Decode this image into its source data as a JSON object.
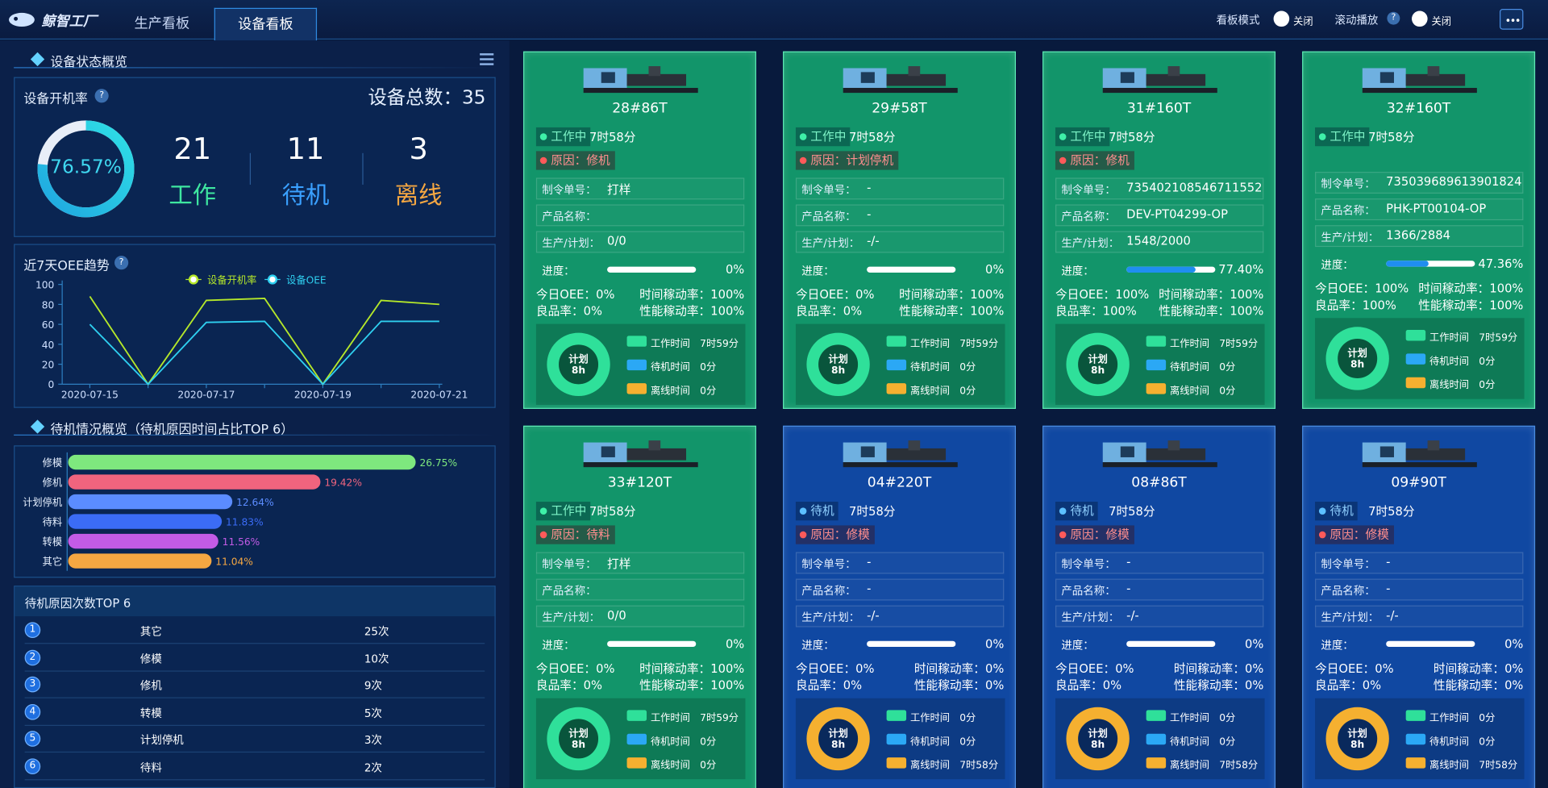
{
  "header": {
    "logo": "鲸智工厂",
    "tabs": [
      "生产看板",
      "设备看板"
    ],
    "active_tab": 1,
    "board_mode": {
      "label": "看板模式",
      "state": "关闭"
    },
    "scroll_play": {
      "label": "滚动播放",
      "state": "关闭"
    },
    "help_icon": "?"
  },
  "status_overview": {
    "title": "设备状态概览",
    "rate_label": "设备开机率",
    "rate": 76.57,
    "rate_text": "76.57%",
    "total": "设备总数：35",
    "counts": [
      {
        "value": 21,
        "label": "工作",
        "color": "#3ee6a0"
      },
      {
        "value": 11,
        "label": "待机",
        "color": "#3aa0ff"
      },
      {
        "value": 3,
        "label": "离线",
        "color": "#f5a742"
      }
    ]
  },
  "oee_trend": {
    "type": "line",
    "title": "近7天OEE趋势",
    "categories": [
      "2020-07-15",
      null,
      "2020-07-17",
      null,
      "2020-07-19",
      null,
      "2020-07-21"
    ],
    "series": [
      {
        "name": "设备开机率",
        "color": "#b5e82a",
        "values": [
          88,
          0,
          84,
          86,
          0,
          84,
          80
        ]
      },
      {
        "name": "设备OEE",
        "color": "#2fd0f0",
        "values": [
          60,
          0,
          62,
          63,
          0,
          63,
          63
        ]
      }
    ],
    "ylim": [
      0,
      100
    ],
    "yticks": [
      0,
      20,
      40,
      60,
      80,
      100
    ]
  },
  "standby_ratio": {
    "type": "bar",
    "title": "待机情况概览（待机原因时间占比TOP 6）",
    "categories": [
      "修模",
      "修机",
      "计划停机",
      "待料",
      "转模",
      "其它"
    ],
    "values": [
      26.75,
      19.42,
      12.64,
      11.83,
      11.56,
      11.04
    ],
    "value_labels": [
      "26.75%",
      "19.42%",
      "12.64%",
      "11.83%",
      "11.56%",
      "11.04%"
    ],
    "colors": [
      "#7ee87e",
      "#f0647e",
      "#5b8cff",
      "#3b6cf6",
      "#c35be6",
      "#f5a742"
    ]
  },
  "standby_count": {
    "title": "待机原因次数TOP 6",
    "rows": [
      {
        "rank": 1,
        "reason": "其它",
        "count": "25次"
      },
      {
        "rank": 2,
        "reason": "修模",
        "count": "10次"
      },
      {
        "rank": 3,
        "reason": "修机",
        "count": "9次"
      },
      {
        "rank": 4,
        "reason": "转模",
        "count": "5次"
      },
      {
        "rank": 5,
        "reason": "计划停机",
        "count": "3次"
      },
      {
        "rank": 6,
        "reason": "待料",
        "count": "2次"
      }
    ]
  },
  "machine_labels": {
    "order": "制令单号：",
    "product": "产品名称：",
    "plan": "生产/计划：",
    "progress": "进度：",
    "plan_center": "计划",
    "plan_hours": "8h",
    "legend": [
      "工作时间",
      "待机时间",
      "离线时间"
    ],
    "legend_colors": [
      "#2fe09a",
      "#2ba8f5",
      "#f5b030"
    ]
  },
  "machines": [
    {
      "name": "28#86T",
      "color": "#12956a",
      "status": "工作中",
      "duration": "7时58分",
      "reason": "原因：修机",
      "order": "打样",
      "product": null,
      "plan": "0/0",
      "progress": 0,
      "progress_label": "0%",
      "stats": [
        "今日OEE：0%",
        "时间稼动率：100%",
        "良品率：0%",
        "性能稼动率：100%"
      ],
      "time": [
        {
          "value": 479,
          "label": "7时59分"
        },
        {
          "value": 0,
          "label": "0分"
        },
        {
          "value": 0,
          "label": "0分"
        }
      ]
    },
    {
      "name": "29#58T",
      "color": "#12956a",
      "status": "工作中",
      "duration": "7时58分",
      "reason": "原因：计划停机",
      "order": "-",
      "product": "-",
      "plan": "-/-",
      "progress": 0,
      "progress_label": "0%",
      "stats": [
        "今日OEE：0%",
        "时间稼动率：100%",
        "良品率：0%",
        "性能稼动率：100%"
      ],
      "time": [
        {
          "value": 479,
          "label": "7时59分"
        },
        {
          "value": 0,
          "label": "0分"
        },
        {
          "value": 0,
          "label": "0分"
        }
      ]
    },
    {
      "name": "31#160T",
      "color": "#12956a",
      "status": "工作中",
      "duration": "7时58分",
      "reason": "原因：修机",
      "order": "735402108546711552",
      "product": "DEV-PT04299-OP",
      "plan": "1548/2000",
      "progress": 77.4,
      "progress_label": "77.40%",
      "stats": [
        "今日OEE：100%",
        "时间稼动率：100%",
        "良品率：100%",
        "性能稼动率：100%"
      ],
      "time": [
        {
          "value": 479,
          "label": "7时59分"
        },
        {
          "value": 0,
          "label": "0分"
        },
        {
          "value": 0,
          "label": "0分"
        }
      ]
    },
    {
      "name": "32#160T",
      "color": "#12956a",
      "status": "工作中",
      "duration": "7时58分",
      "reason": null,
      "order": "735039689613901824",
      "product": "PHK-PT00104-OP",
      "plan": "1366/2884",
      "progress": 47.36,
      "progress_label": "47.36%",
      "stats": [
        "今日OEE：100%",
        "时间稼动率：100%",
        "良品率：100%",
        "性能稼动率：100%"
      ],
      "time": [
        {
          "value": 479,
          "label": "7时59分"
        },
        {
          "value": 0,
          "label": "0分"
        },
        {
          "value": 0,
          "label": "0分"
        }
      ]
    },
    {
      "name": "33#120T",
      "color": "#12956a",
      "status": "工作中",
      "duration": "7时58分",
      "reason": "原因：待料",
      "order": "打样",
      "product": null,
      "plan": "0/0",
      "progress": 0,
      "progress_label": "0%",
      "stats": [
        "今日OEE：0%",
        "时间稼动率：100%",
        "良品率：0%",
        "性能稼动率：100%"
      ],
      "time": [
        {
          "value": 479,
          "label": "7时59分"
        },
        {
          "value": 0,
          "label": "0分"
        },
        {
          "value": 0,
          "label": "0分"
        }
      ]
    },
    {
      "name": "04#220T",
      "color": "#1048a2",
      "status": "待机",
      "duration": "7时58分",
      "reason": "原因：修模",
      "order": "-",
      "product": "-",
      "plan": "-/-",
      "progress": 0,
      "progress_label": "0%",
      "stats": [
        "今日OEE：0%",
        "时间稼动率：0%",
        "良品率：0%",
        "性能稼动率：0%"
      ],
      "time": [
        {
          "value": 0,
          "label": "0分"
        },
        {
          "value": 0,
          "label": "0分"
        },
        {
          "value": 478,
          "label": "7时58分"
        }
      ]
    },
    {
      "name": "08#86T",
      "color": "#1048a2",
      "status": "待机",
      "duration": "7时58分",
      "reason": "原因：修模",
      "order": "-",
      "product": "-",
      "plan": "-/-",
      "progress": 0,
      "progress_label": "0%",
      "stats": [
        "今日OEE：0%",
        "时间稼动率：0%",
        "良品率：0%",
        "性能稼动率：0%"
      ],
      "time": [
        {
          "value": 0,
          "label": "0分"
        },
        {
          "value": 0,
          "label": "0分"
        },
        {
          "value": 478,
          "label": "7时58分"
        }
      ]
    },
    {
      "name": "09#90T",
      "color": "#1048a2",
      "status": "待机",
      "duration": "7时58分",
      "reason": "原因：修模",
      "order": "-",
      "product": "-",
      "plan": "-/-",
      "progress": 0,
      "progress_label": "0%",
      "stats": [
        "今日OEE：0%",
        "时间稼动率：0%",
        "良品率：0%",
        "性能稼动率：0%"
      ],
      "time": [
        {
          "value": 0,
          "label": "0分"
        },
        {
          "value": 0,
          "label": "0分"
        },
        {
          "value": 478,
          "label": "7时58分"
        }
      ]
    }
  ]
}
